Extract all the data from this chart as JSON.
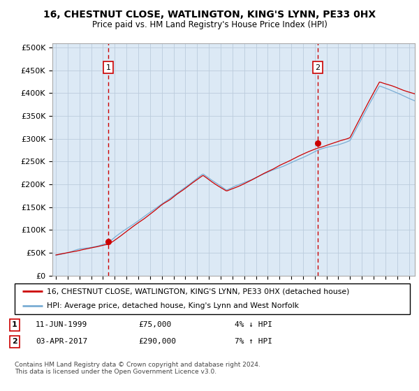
{
  "title": "16, CHESTNUT CLOSE, WATLINGTON, KING'S LYNN, PE33 0HX",
  "subtitle": "Price paid vs. HM Land Registry's House Price Index (HPI)",
  "ylabel_ticks": [
    "£0",
    "£50K",
    "£100K",
    "£150K",
    "£200K",
    "£250K",
    "£300K",
    "£350K",
    "£400K",
    "£450K",
    "£500K"
  ],
  "ytick_values": [
    0,
    50000,
    100000,
    150000,
    200000,
    250000,
    300000,
    350000,
    400000,
    450000,
    500000
  ],
  "xlim_start": 1994.7,
  "xlim_end": 2025.5,
  "ylim_min": 0,
  "ylim_max": 510000,
  "sale1_year": 1999.44,
  "sale1_price": 75000,
  "sale2_year": 2017.25,
  "sale2_price": 290000,
  "hpi_color": "#7aadd4",
  "price_color": "#cc0000",
  "vline_color": "#cc0000",
  "plot_bg_color": "#dce9f5",
  "background_color": "#ffffff",
  "grid_color": "#bbccdd",
  "legend_line1": "16, CHESTNUT CLOSE, WATLINGTON, KING'S LYNN, PE33 0HX (detached house)",
  "legend_line2": "HPI: Average price, detached house, King's Lynn and West Norfolk",
  "footer": "Contains HM Land Registry data © Crown copyright and database right 2024.\nThis data is licensed under the Open Government Licence v3.0.",
  "note1_date": "11-JUN-1999",
  "note1_price": "£75,000",
  "note1_pct": "4% ↓ HPI",
  "note2_date": "03-APR-2017",
  "note2_price": "£290,000",
  "note2_pct": "7% ↑ HPI"
}
